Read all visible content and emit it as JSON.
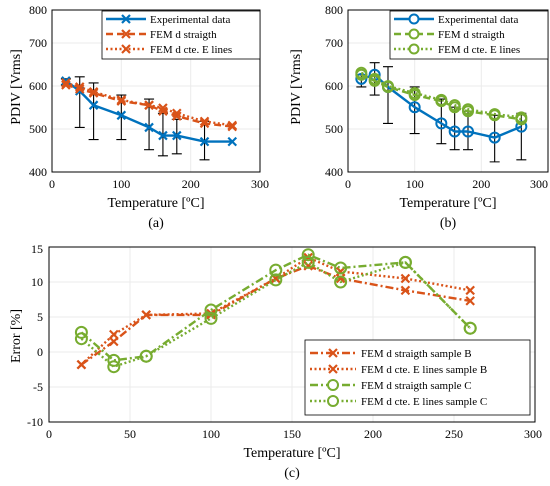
{
  "colors": {
    "blue": "#0072BD",
    "orange": "#D95319",
    "green": "#77AC30",
    "black": "#000000"
  },
  "chart_data": [
    {
      "id": "a",
      "type": "line",
      "caption": "(a)",
      "xlabel": "Temperature [ºC]",
      "ylabel": "PDIV [Vrms]",
      "xlim": [
        0,
        300
      ],
      "ylim": [
        400,
        800
      ],
      "xticks": [
        "0",
        "100",
        "200",
        "300"
      ],
      "yticks": [
        "400",
        "500",
        "600",
        "700",
        "800"
      ],
      "grid": true,
      "legend_position": "top-right",
      "series": [
        {
          "name": "Experimental data",
          "style": "solid",
          "marker": "x",
          "color": "#0072BD",
          "x": [
            20,
            40,
            60,
            100,
            140,
            160,
            180,
            220,
            260
          ],
          "y": [
            625,
            600,
            565,
            540,
            510,
            490,
            490,
            475,
            475
          ],
          "error_low": [
            615,
            510,
            480,
            480,
            455,
            440,
            445,
            430,
            475
          ],
          "error_high": [
            630,
            635,
            620,
            590,
            580,
            545,
            530,
            525,
            475
          ]
        },
        {
          "name": "FEM d straigth",
          "style": "dashed",
          "marker": "x",
          "color": "#D95319",
          "x": [
            20,
            40,
            60,
            100,
            140,
            160,
            180,
            220,
            260
          ],
          "y": [
            615,
            605,
            595,
            575,
            565,
            550,
            538,
            520,
            512
          ]
        },
        {
          "name": "FEM d cte. E lines",
          "style": "dotted",
          "marker": "x",
          "color": "#D95319",
          "x": [
            20,
            40,
            60,
            100,
            140,
            160,
            180,
            220,
            260
          ],
          "y": [
            620,
            610,
            598,
            578,
            565,
            558,
            545,
            525,
            515
          ]
        }
      ]
    },
    {
      "id": "b",
      "type": "line",
      "caption": "(b)",
      "xlabel": "Temperature [ºC]",
      "ylabel": "PDIV [Vrms]",
      "xlim": [
        0,
        300
      ],
      "ylim": [
        400,
        800
      ],
      "xticks": [
        "0",
        "100",
        "200",
        "300"
      ],
      "yticks": [
        "400",
        "500",
        "600",
        "700",
        "800"
      ],
      "grid": true,
      "legend_position": "top-right",
      "series": [
        {
          "name": "Experimental data",
          "style": "solid",
          "marker": "o",
          "color": "#0072BD",
          "x": [
            20,
            40,
            60,
            100,
            140,
            160,
            180,
            220,
            260
          ],
          "y": [
            630,
            640,
            610,
            560,
            520,
            500,
            500,
            485,
            512
          ],
          "error_low": [
            610,
            590,
            520,
            495,
            470,
            455,
            455,
            425,
            430
          ],
          "error_high": [
            640,
            670,
            660,
            610,
            580,
            560,
            550,
            540,
            545
          ]
        },
        {
          "name": "FEM d straigth",
          "style": "dashed",
          "marker": "o",
          "color": "#77AC30",
          "x": [
            20,
            40,
            60,
            100,
            140,
            160,
            180,
            220,
            260
          ],
          "y": [
            640,
            625,
            610,
            590,
            575,
            560,
            550,
            540,
            530
          ]
        },
        {
          "name": "FEM d cte. E lines",
          "style": "dotted",
          "marker": "o",
          "color": "#77AC30",
          "x": [
            20,
            40,
            60,
            100,
            140,
            160,
            180,
            220,
            260
          ],
          "y": [
            645,
            630,
            612,
            595,
            578,
            565,
            555,
            543,
            535
          ]
        }
      ]
    },
    {
      "id": "c",
      "type": "line",
      "caption": "(c)",
      "xlabel": "Temperature [ºC]",
      "ylabel": "Error [%]",
      "xlim": [
        0,
        300
      ],
      "ylim": [
        -10,
        15
      ],
      "xticks": [
        "0",
        "50",
        "100",
        "150",
        "200",
        "250",
        "300"
      ],
      "yticks": [
        "-10",
        "-5",
        "0",
        "5",
        "10",
        "15"
      ],
      "grid": true,
      "legend_position": "bottom-right",
      "series": [
        {
          "name": "FEM d straigth sample B",
          "style": "dashdot",
          "marker": "x",
          "color": "#D95319",
          "x": [
            20,
            40,
            60,
            100,
            140,
            160,
            180,
            220,
            260
          ],
          "y": [
            -1.8,
            1.5,
            5.3,
            5.3,
            10.5,
            12.3,
            10.5,
            8.8,
            7.3
          ]
        },
        {
          "name": "FEM d cte. E lines sample B",
          "style": "dotted",
          "marker": "x",
          "color": "#D95319",
          "x": [
            20,
            40,
            60,
            100,
            140,
            160,
            180,
            220,
            260
          ],
          "y": [
            -1.8,
            2.5,
            5.3,
            5.5,
            10.5,
            13.5,
            11.5,
            10.5,
            8.8
          ]
        },
        {
          "name": "FEM d straigth sample C",
          "style": "dashdot",
          "marker": "o",
          "color": "#77AC30",
          "x": [
            20,
            40,
            60,
            100,
            140,
            160,
            180,
            220,
            260
          ],
          "y": [
            2.8,
            -1.2,
            -0.6,
            6.0,
            11.7,
            13.9,
            12.0,
            12.8,
            3.4
          ]
        },
        {
          "name": "FEM d cte. E lines sample C",
          "style": "dotted",
          "marker": "o",
          "color": "#77AC30",
          "x": [
            20,
            40,
            60,
            100,
            140,
            160,
            180,
            220,
            260
          ],
          "y": [
            1.9,
            -2.1,
            -0.6,
            4.8,
            10.3,
            12.8,
            10.0,
            12.8,
            3.4
          ]
        }
      ]
    }
  ]
}
